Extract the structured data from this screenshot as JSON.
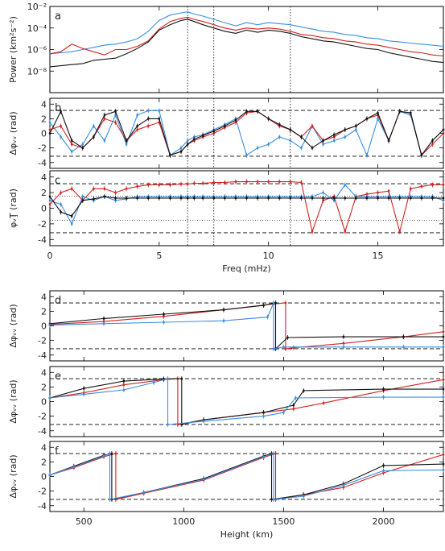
{
  "chart_data": [
    {
      "panel": "a",
      "type": "line",
      "xlim": [
        0,
        18
      ],
      "ylim": [
        -10,
        -2
      ],
      "ylabel": "Power (km²s⁻²)",
      "yscale": "log",
      "yticks": [
        {
          "v": -2,
          "label": "10⁻²"
        },
        {
          "v": -4,
          "label": "10⁻⁴"
        },
        {
          "v": -6,
          "label": "10⁻⁶"
        },
        {
          "v": -8,
          "label": "10⁻⁸"
        }
      ],
      "vlines": [
        6.3,
        7.5,
        11.0
      ],
      "x": [
        0,
        0.5,
        1,
        1.5,
        2,
        2.5,
        3,
        3.5,
        4,
        4.5,
        5,
        5.5,
        6,
        6.3,
        6.6,
        7,
        7.5,
        8,
        8.5,
        9,
        9.5,
        10,
        10.5,
        11,
        11.5,
        12,
        12.5,
        13,
        13.5,
        14,
        14.5,
        15,
        15.5,
        16,
        16.5,
        17,
        17.5,
        18
      ],
      "series": [
        {
          "color": "#3a8ee0",
          "values": [
            -6.4,
            -6.3,
            -6.2,
            -6.0,
            -5.8,
            -5.6,
            -5.5,
            -5.3,
            -5.0,
            -4.3,
            -3.3,
            -2.8,
            -2.6,
            -2.5,
            -2.7,
            -2.9,
            -3.2,
            -3.5,
            -3.8,
            -3.5,
            -3.7,
            -3.5,
            -3.6,
            -3.7,
            -3.9,
            -4.1,
            -4.3,
            -4.4,
            -4.6,
            -4.7,
            -4.9,
            -5.0,
            -5.2,
            -5.3,
            -5.4,
            -5.5,
            -5.6,
            -5.7
          ]
        },
        {
          "color": "#d62020",
          "values": [
            -6.4,
            -6.2,
            -5.5,
            -5.9,
            -6.2,
            -6.5,
            -6.0,
            -6.0,
            -5.7,
            -5.2,
            -4.1,
            -3.4,
            -3.1,
            -3.0,
            -3.2,
            -3.4,
            -3.7,
            -4.0,
            -4.2,
            -4.0,
            -4.1,
            -4.0,
            -4.1,
            -4.3,
            -4.6,
            -4.7,
            -4.9,
            -5.0,
            -5.2,
            -5.3,
            -5.5,
            -5.6,
            -5.8,
            -6.0,
            -6.2,
            -6.3,
            -6.5,
            -6.6
          ]
        },
        {
          "color": "#111111",
          "values": [
            -7.6,
            -7.5,
            -7.4,
            -7.3,
            -7.0,
            -6.9,
            -6.8,
            -6.4,
            -5.9,
            -5.3,
            -4.2,
            -3.7,
            -3.3,
            -3.2,
            -3.4,
            -3.7,
            -4.0,
            -4.3,
            -4.5,
            -4.2,
            -4.4,
            -4.2,
            -4.3,
            -4.5,
            -4.8,
            -5.0,
            -5.2,
            -5.3,
            -5.5,
            -5.7,
            -5.9,
            -6.0,
            -6.3,
            -6.5,
            -6.7,
            -6.9,
            -7.1,
            -7.2
          ]
        }
      ]
    },
    {
      "panel": "b",
      "type": "line",
      "xlim": [
        0,
        18
      ],
      "ylim": [
        -4.8,
        4.8
      ],
      "ylabel": "Δφᵥᵥ (rad)",
      "yticks": [
        {
          "v": 4,
          "label": "4"
        },
        {
          "v": 2,
          "label": "2"
        },
        {
          "v": 0,
          "label": "0"
        },
        {
          "v": -2,
          "label": "-2"
        },
        {
          "v": -4,
          "label": "-4"
        }
      ],
      "hlines": [
        3.14,
        -3.14
      ],
      "vlines": [
        6.3,
        7.5,
        11.0
      ],
      "x": [
        0,
        0.5,
        1,
        1.5,
        2,
        2.5,
        3,
        3.5,
        4,
        4.5,
        5,
        5.5,
        6,
        6.3,
        6.6,
        7,
        7.5,
        8,
        8.5,
        9,
        9.5,
        10,
        10.5,
        11,
        11.5,
        12,
        12.5,
        13,
        13.5,
        14,
        14.5,
        15,
        15.5,
        16,
        16.5,
        17,
        17.5,
        18
      ],
      "series": [
        {
          "color": "#3a8ee0",
          "values": [
            1.5,
            -0.5,
            -2.5,
            -1.5,
            1.0,
            -1.0,
            2.5,
            -1.5,
            2.5,
            3.1,
            3.1,
            -3.0,
            -2.0,
            -1.0,
            -0.5,
            -0.2,
            0.5,
            1.2,
            2.0,
            -3.0,
            -2.0,
            -1.5,
            -0.5,
            -1.0,
            -2.0,
            1.0,
            -1.5,
            -1.0,
            -0.5,
            0.5,
            -3.0,
            2.0,
            -1.0,
            3.0,
            2.5,
            -3.0,
            -1.0,
            0.5
          ]
        },
        {
          "color": "#d62020",
          "values": [
            0.5,
            1.0,
            -1.5,
            -2.0,
            -0.5,
            2.0,
            1.5,
            -1.0,
            0.5,
            1.0,
            1.5,
            -3.0,
            -2.5,
            -1.5,
            -1.0,
            -0.5,
            0.0,
            0.8,
            1.5,
            2.8,
            3.0,
            2.0,
            1.0,
            0.5,
            -0.5,
            1.0,
            -1.0,
            -0.5,
            0.5,
            1.0,
            2.0,
            2.5,
            -1.0,
            3.0,
            2.8,
            -3.0,
            -1.5,
            0.0
          ]
        },
        {
          "color": "#111111",
          "values": [
            0.0,
            3.0,
            -1.0,
            -2.0,
            -0.5,
            2.5,
            3.0,
            -1.0,
            1.0,
            2.0,
            2.0,
            -3.0,
            -2.5,
            -1.5,
            -0.8,
            -0.3,
            0.3,
            1.0,
            1.8,
            3.0,
            3.0,
            2.0,
            1.2,
            0.5,
            -0.5,
            -2.0,
            -1.0,
            -0.2,
            0.5,
            1.0,
            2.0,
            2.8,
            -1.0,
            3.0,
            2.8,
            -3.0,
            -1.0,
            0.5
          ]
        }
      ]
    },
    {
      "panel": "c",
      "type": "line",
      "xlim": [
        0,
        18
      ],
      "ylim": [
        -4.8,
        4.8
      ],
      "ylabel": "φᵥŢ (rad)",
      "xlabel": "Freq (mHz)",
      "xticks": [
        {
          "v": 0,
          "label": "0"
        },
        {
          "v": 5,
          "label": "5"
        },
        {
          "v": 10,
          "label": "10"
        },
        {
          "v": 15,
          "label": "15"
        }
      ],
      "yticks": [
        {
          "v": 4,
          "label": "4"
        },
        {
          "v": 2,
          "label": "2"
        },
        {
          "v": 0,
          "label": "0"
        },
        {
          "v": -2,
          "label": "-2"
        },
        {
          "v": -4,
          "label": "-4"
        }
      ],
      "hlines": [
        3.14,
        -3.14
      ],
      "dottedh": [
        1.57,
        -1.57
      ],
      "vlines": [
        6.3,
        7.5,
        11.0
      ],
      "x": [
        0,
        0.5,
        1,
        1.5,
        2,
        2.5,
        3,
        3.5,
        4,
        4.5,
        5,
        5.5,
        6,
        6.3,
        6.6,
        7,
        7.5,
        8,
        8.5,
        9,
        9.5,
        10,
        10.5,
        11,
        11.5,
        12,
        12.5,
        13,
        13.5,
        14,
        14.5,
        15,
        15.5,
        16,
        16.5,
        17,
        17.5,
        18
      ],
      "series": [
        {
          "color": "#d62020",
          "values": [
            0.5,
            2.0,
            2.5,
            1.0,
            2.5,
            2.5,
            2.0,
            2.5,
            2.8,
            3.0,
            3.0,
            3.0,
            3.1,
            3.1,
            3.2,
            3.2,
            3.3,
            3.3,
            3.4,
            3.4,
            3.4,
            3.4,
            3.4,
            3.4,
            3.3,
            -3.0,
            1.0,
            1.5,
            -3.0,
            1.5,
            1.8,
            2.0,
            2.2,
            -3.0,
            2.5,
            2.8,
            3.0,
            3.0
          ]
        },
        {
          "color": "#3a8ee0",
          "values": [
            1.0,
            0.5,
            -2.0,
            1.5,
            1.0,
            1.5,
            1.0,
            1.2,
            1.5,
            1.5,
            1.5,
            1.5,
            1.5,
            1.5,
            1.5,
            1.5,
            1.5,
            1.5,
            1.5,
            1.5,
            1.5,
            1.5,
            1.5,
            1.5,
            1.5,
            1.5,
            2.0,
            1.0,
            3.0,
            1.5,
            1.5,
            1.5,
            1.5,
            1.5,
            1.5,
            1.5,
            1.5,
            1.0
          ]
        },
        {
          "color": "#111111",
          "values": [
            1.5,
            -0.5,
            -1.0,
            1.0,
            1.2,
            1.5,
            1.3,
            1.3,
            1.3,
            1.3,
            1.3,
            1.3,
            1.3,
            1.3,
            1.3,
            1.3,
            1.3,
            1.3,
            1.3,
            1.3,
            1.3,
            1.3,
            1.3,
            1.3,
            1.3,
            1.3,
            1.3,
            1.3,
            1.3,
            1.3,
            1.3,
            1.3,
            1.3,
            1.3,
            1.3,
            1.3,
            1.3,
            1.3
          ]
        }
      ]
    },
    {
      "panel": "d",
      "type": "line",
      "xlim": [
        330,
        2300
      ],
      "ylim": [
        -4.8,
        4.8
      ],
      "ylabel": "Δφᵥᵥ (rad)",
      "yticks": [
        {
          "v": 4,
          "label": "4"
        },
        {
          "v": 2,
          "label": "2"
        },
        {
          "v": 0,
          "label": "0"
        },
        {
          "v": -2,
          "label": "-2"
        },
        {
          "v": -4,
          "label": "-4"
        }
      ],
      "hlines": [
        3.14,
        -3.14
      ],
      "series": [
        {
          "color": "#d62020",
          "x": [
            330,
            600,
            900,
            1200,
            1450,
            1510,
            1510,
            1550,
            1800,
            2100,
            2300
          ],
          "values": [
            0.2,
            0.6,
            1.3,
            2.2,
            3.0,
            3.14,
            -3.14,
            -3.0,
            -2.4,
            -1.5,
            -0.8
          ]
        },
        {
          "color": "#111111",
          "x": [
            330,
            600,
            900,
            1200,
            1400,
            1460,
            1460,
            1520,
            1800,
            2100,
            2300
          ],
          "values": [
            0.3,
            1.0,
            1.6,
            2.2,
            2.8,
            3.14,
            -3.14,
            -1.6,
            -1.5,
            -1.5,
            -1.5
          ]
        },
        {
          "color": "#3a8ee0",
          "x": [
            330,
            600,
            900,
            1200,
            1420,
            1450,
            1450,
            1500,
            1800,
            2100,
            2300
          ],
          "values": [
            0.1,
            0.3,
            0.5,
            0.7,
            1.2,
            3.14,
            -3.14,
            -2.9,
            -2.9,
            -2.9,
            -2.9
          ]
        }
      ]
    },
    {
      "panel": "e",
      "type": "line",
      "xlim": [
        330,
        2300
      ],
      "ylim": [
        -4.8,
        4.8
      ],
      "ylabel": "Δφᵥᵥ (rad)",
      "yticks": [
        {
          "v": 4,
          "label": "4"
        },
        {
          "v": 2,
          "label": "2"
        },
        {
          "v": 0,
          "label": "0"
        },
        {
          "v": -2,
          "label": "-2"
        },
        {
          "v": -4,
          "label": "-4"
        }
      ],
      "hlines": [
        3.14,
        -3.14
      ],
      "series": [
        {
          "color": "#d62020",
          "x": [
            330,
            500,
            700,
            900,
            970,
            970,
            1100,
            1400,
            1550,
            1700,
            2000,
            2300
          ],
          "values": [
            0.5,
            1.2,
            2.3,
            3.0,
            3.14,
            -3.14,
            -2.5,
            -1.5,
            -1.0,
            -0.2,
            1.5,
            3.0
          ]
        },
        {
          "color": "#111111",
          "x": [
            330,
            500,
            700,
            900,
            990,
            990,
            1100,
            1400,
            1550,
            1600,
            2000,
            2300
          ],
          "values": [
            0.5,
            1.8,
            2.8,
            3.1,
            3.14,
            -3.14,
            -2.5,
            -1.5,
            -0.5,
            1.5,
            1.7,
            1.7
          ]
        },
        {
          "color": "#3a8ee0",
          "x": [
            330,
            500,
            700,
            850,
            920,
            920,
            1100,
            1400,
            1500,
            1560,
            2000,
            2300
          ],
          "values": [
            0.5,
            1.0,
            1.6,
            2.6,
            3.14,
            -3.14,
            -2.7,
            -2.0,
            -1.5,
            0.5,
            0.6,
            0.6
          ]
        }
      ]
    },
    {
      "panel": "f",
      "type": "line",
      "xlim": [
        330,
        2300
      ],
      "ylim": [
        -4.8,
        4.8
      ],
      "ylabel": "Δφᵥᵥ (rad)",
      "xlabel": "Height (km)",
      "xticks": [
        {
          "v": 500,
          "label": "500"
        },
        {
          "v": 1000,
          "label": "1000"
        },
        {
          "v": 1500,
          "label": "1500"
        },
        {
          "v": 2000,
          "label": "2000"
        }
      ],
      "yticks": [
        {
          "v": 4,
          "label": "4"
        },
        {
          "v": 2,
          "label": "2"
        },
        {
          "v": 0,
          "label": "0"
        },
        {
          "v": -2,
          "label": "-2"
        },
        {
          "v": -4,
          "label": "-4"
        }
      ],
      "hlines": [
        3.14,
        -3.14
      ],
      "series": [
        {
          "color": "#d62020",
          "x": [
            330,
            450,
            600,
            660,
            660,
            800,
            1100,
            1400,
            1460,
            1460,
            1600,
            1800,
            2000,
            2300
          ],
          "values": [
            0.2,
            1.2,
            2.7,
            3.14,
            -3.14,
            -2.3,
            -0.5,
            2.6,
            3.14,
            -3.14,
            -2.5,
            -1.5,
            0.5,
            3.0
          ]
        },
        {
          "color": "#111111",
          "x": [
            330,
            450,
            600,
            640,
            640,
            800,
            1100,
            1400,
            1440,
            1440,
            1600,
            1800,
            2000,
            2300
          ],
          "values": [
            0.2,
            1.4,
            2.9,
            3.14,
            -3.14,
            -2.2,
            -0.3,
            2.8,
            3.14,
            -3.14,
            -2.5,
            -1.0,
            1.5,
            1.7
          ]
        },
        {
          "color": "#3a8ee0",
          "x": [
            330,
            450,
            600,
            630,
            630,
            800,
            1100,
            1400,
            1450,
            1450,
            1600,
            1800,
            2000,
            2300
          ],
          "values": [
            0.2,
            1.3,
            2.8,
            3.14,
            -3.14,
            -2.2,
            -0.4,
            2.7,
            3.14,
            -3.14,
            -2.7,
            -1.2,
            0.8,
            0.9
          ]
        }
      ]
    }
  ],
  "panel_letters": [
    "a",
    "b",
    "c",
    "d",
    "e",
    "f"
  ],
  "axis_labels": {
    "a_y": "Power (km²s⁻²)",
    "b_y": "Δφᵥᵥ (rad)",
    "c_y": "φᵥŢ (rad)",
    "c_x": "Freq (mHz)",
    "d_y": "Δφᵥᵥ (rad)",
    "e_y": "Δφᵥᵥ (rad)",
    "f_y": "Δφᵥᵥ (rad)",
    "f_x": "Height (km)"
  }
}
